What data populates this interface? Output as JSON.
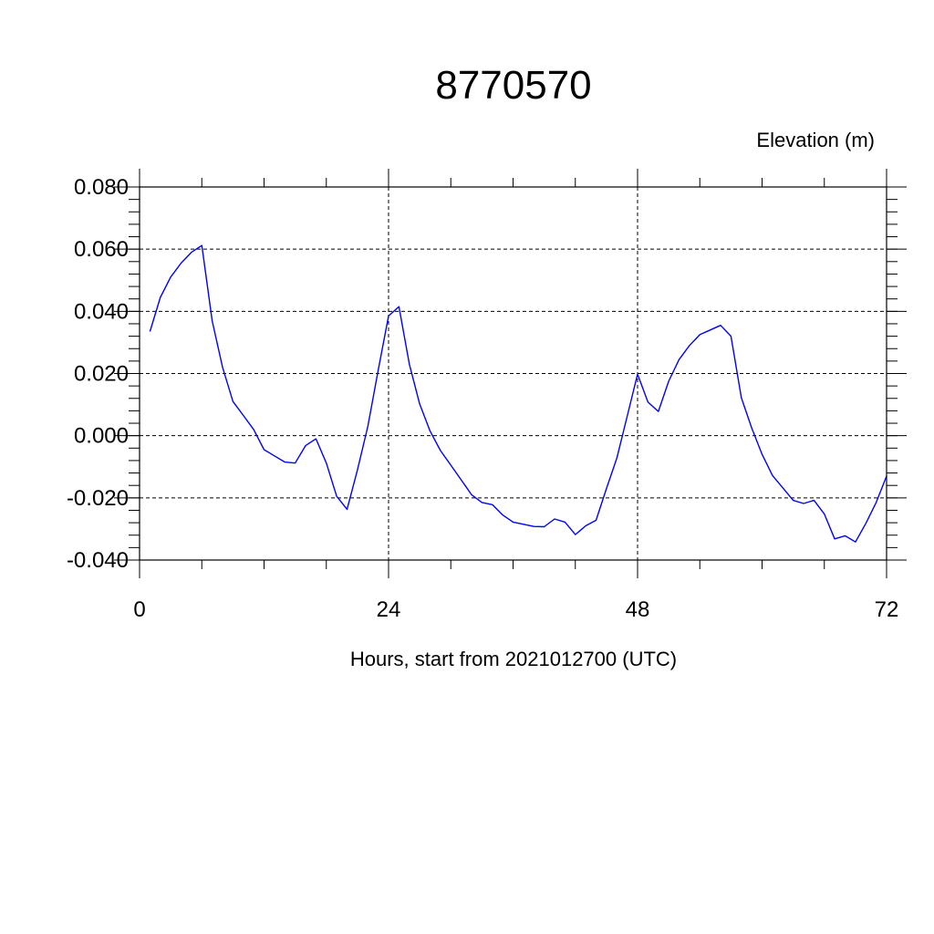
{
  "chart_data": {
    "type": "line",
    "title": "8770570",
    "ylabel_top": "Elevation (m)",
    "xlabel": "Hours, start from 2021012700 (UTC)",
    "xlim": [
      0,
      72
    ],
    "ylim": [
      -0.04,
      0.08
    ],
    "x_ticks": [
      0,
      24,
      48,
      72
    ],
    "x_tick_labels": [
      "0",
      "24",
      "48",
      "72"
    ],
    "y_ticks": [
      -0.04,
      -0.02,
      0.0,
      0.02,
      0.04,
      0.06,
      0.08
    ],
    "y_tick_labels": [
      "-0.040",
      "-0.020",
      "0.000",
      "0.020",
      "0.040",
      "0.060",
      "0.080"
    ],
    "grid": true,
    "series": [
      {
        "color": "#0000ff",
        "x": [
          1,
          2,
          3,
          4,
          5,
          6,
          7,
          8,
          9,
          10,
          11,
          12,
          13,
          14,
          15,
          16,
          17,
          18,
          19,
          20,
          21,
          22,
          23,
          24,
          25,
          26,
          27,
          28,
          29,
          30,
          31,
          32,
          33,
          34,
          35,
          36,
          37,
          38,
          39,
          40,
          41,
          42,
          43,
          44,
          45,
          46,
          47,
          48,
          49,
          50,
          51,
          52,
          53,
          54,
          55,
          56,
          57,
          58,
          59,
          60,
          61,
          62,
          63,
          64,
          65,
          66,
          67,
          68,
          69,
          70,
          71,
          72
        ],
        "y": [
          0.0335,
          0.0445,
          0.051,
          0.0555,
          0.059,
          0.0612,
          0.037,
          0.022,
          0.011,
          0.0065,
          0.002,
          -0.0045,
          -0.0065,
          -0.0085,
          -0.0088,
          -0.0032,
          -0.001,
          -0.0088,
          -0.0195,
          -0.0237,
          -0.011,
          0.003,
          0.021,
          0.0385,
          0.0415,
          0.023,
          0.0102,
          0.0015,
          -0.0048,
          -0.0095,
          -0.0142,
          -0.019,
          -0.0215,
          -0.0222,
          -0.0255,
          -0.0278,
          -0.0285,
          -0.0292,
          -0.0293,
          -0.0268,
          -0.0278,
          -0.0318,
          -0.029,
          -0.0272,
          -0.017,
          -0.0072,
          0.0062,
          0.0198,
          0.0108,
          0.0078,
          0.0175,
          0.0245,
          0.029,
          0.0325,
          0.034,
          0.0355,
          0.032,
          0.0122,
          0.0025,
          -0.006,
          -0.0128,
          -0.0168,
          -0.0208,
          -0.0218,
          -0.0208,
          -0.0252,
          -0.0332,
          -0.0322,
          -0.0342,
          -0.0282,
          -0.0215,
          -0.013
        ]
      }
    ]
  }
}
